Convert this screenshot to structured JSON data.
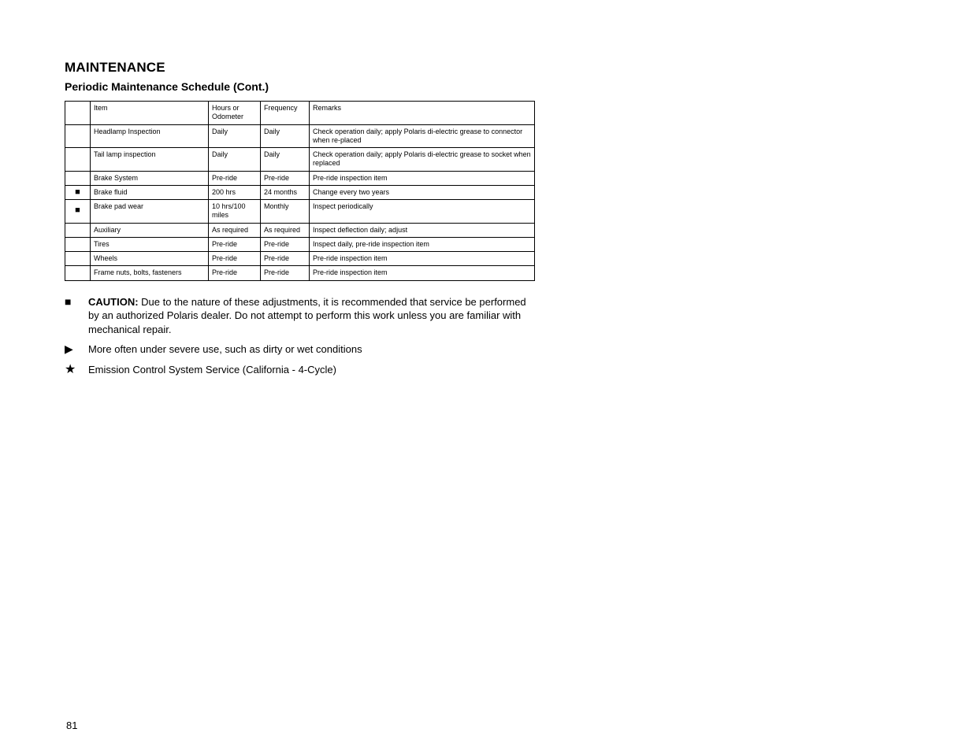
{
  "page": {
    "heading": "MAINTENANCE",
    "subheading": "Periodic Maintenance Schedule (Cont.)",
    "page_number": "81"
  },
  "table": {
    "headers": {
      "symbol": "",
      "item": "Item",
      "hours": "Hours or Odometer",
      "frequency": "Frequency",
      "remarks": "Remarks"
    },
    "rows": [
      {
        "symbol": "",
        "item": "Headlamp Inspection",
        "hours": "Daily",
        "frequency": "Daily",
        "remarks": "Check operation daily; apply Polaris di-electric grease to connector when re-placed"
      },
      {
        "symbol": "",
        "item": "Tail lamp inspection",
        "hours": "Daily",
        "frequency": "Daily",
        "remarks": "Check operation daily; apply Polaris di-electric grease to socket when replaced"
      },
      {
        "symbol": "",
        "item": "Brake System",
        "hours": "Pre-ride",
        "frequency": "Pre-ride",
        "remarks": "Pre-ride inspection item"
      },
      {
        "symbol": "■",
        "item": "Brake fluid",
        "hours": "200 hrs",
        "frequency": "24 months",
        "remarks": "Change every two years"
      },
      {
        "symbol": "■",
        "item": "Brake pad wear",
        "hours": "10 hrs/100 miles",
        "frequency": "Monthly",
        "remarks": "Inspect periodically"
      },
      {
        "symbol": "",
        "item": "Auxiliary",
        "hours": "As required",
        "frequency": "As required",
        "remarks": "Inspect deflection daily; adjust"
      },
      {
        "symbol": "",
        "item": "Tires",
        "hours": "Pre-ride",
        "frequency": "Pre-ride",
        "remarks": "Inspect daily, pre-ride inspection item"
      },
      {
        "symbol": "",
        "item": "Wheels",
        "hours": "Pre-ride",
        "frequency": "Pre-ride",
        "remarks": "Pre-ride inspection item"
      },
      {
        "symbol": "",
        "item": "Frame nuts, bolts, fasteners",
        "hours": "Pre-ride",
        "frequency": "Pre-ride",
        "remarks": "Pre-ride inspection item"
      }
    ]
  },
  "notes": {
    "caution_symbol": "■",
    "caution_label": "CAUTION:",
    "caution_text": "Due to the nature of these adjustments, it is recommended that service be performed by an authorized Polaris dealer.  Do not attempt to perform this work unless you are familiar with mechanical repair.",
    "severe_symbol": "▶",
    "severe_text": "More often under severe use, such as dirty or wet conditions",
    "emission_symbol": "★",
    "emission_text": "Emission Control System Service (California - 4-Cycle)"
  }
}
